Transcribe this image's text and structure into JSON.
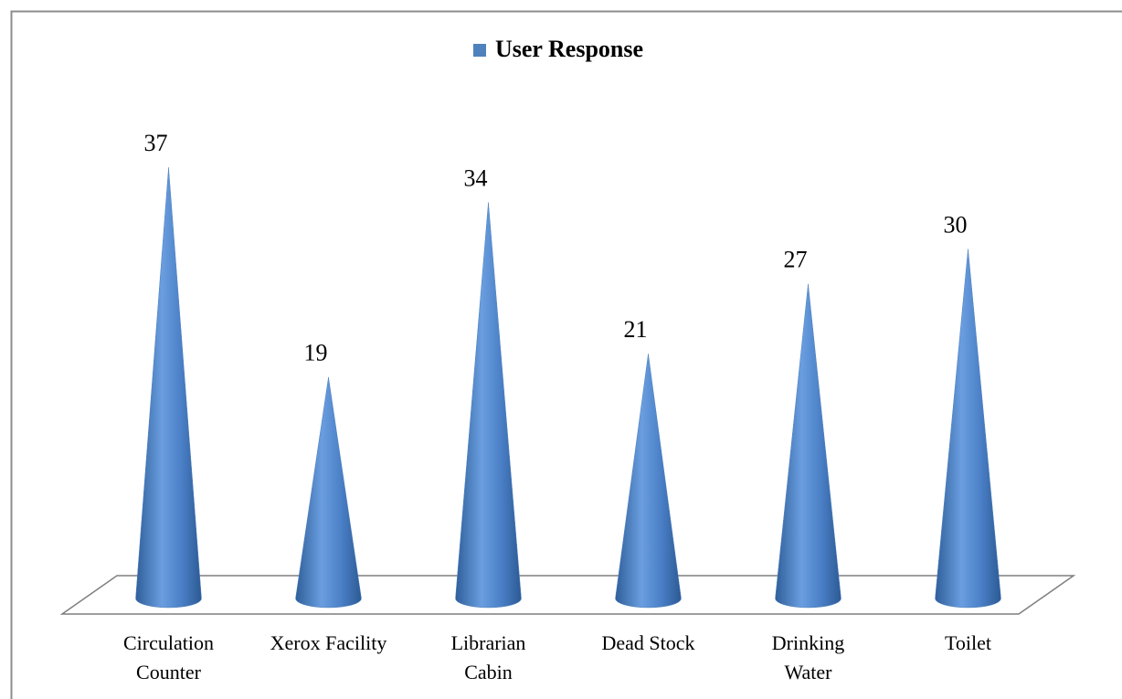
{
  "chart_data": {
    "type": "cone",
    "categories": [
      [
        "Circulation",
        "Counter"
      ],
      [
        "Xerox Facility"
      ],
      [
        "Librarian",
        "Cabin"
      ],
      [
        "Dead Stock"
      ],
      [
        "Drinking",
        "Water"
      ],
      [
        "Toilet"
      ]
    ],
    "series": [
      {
        "name": "User Response",
        "color": "#4f81bd",
        "values": [
          37,
          19,
          34,
          21,
          27,
          30
        ]
      }
    ],
    "ylim": [
      0,
      40
    ],
    "legend": "top"
  }
}
